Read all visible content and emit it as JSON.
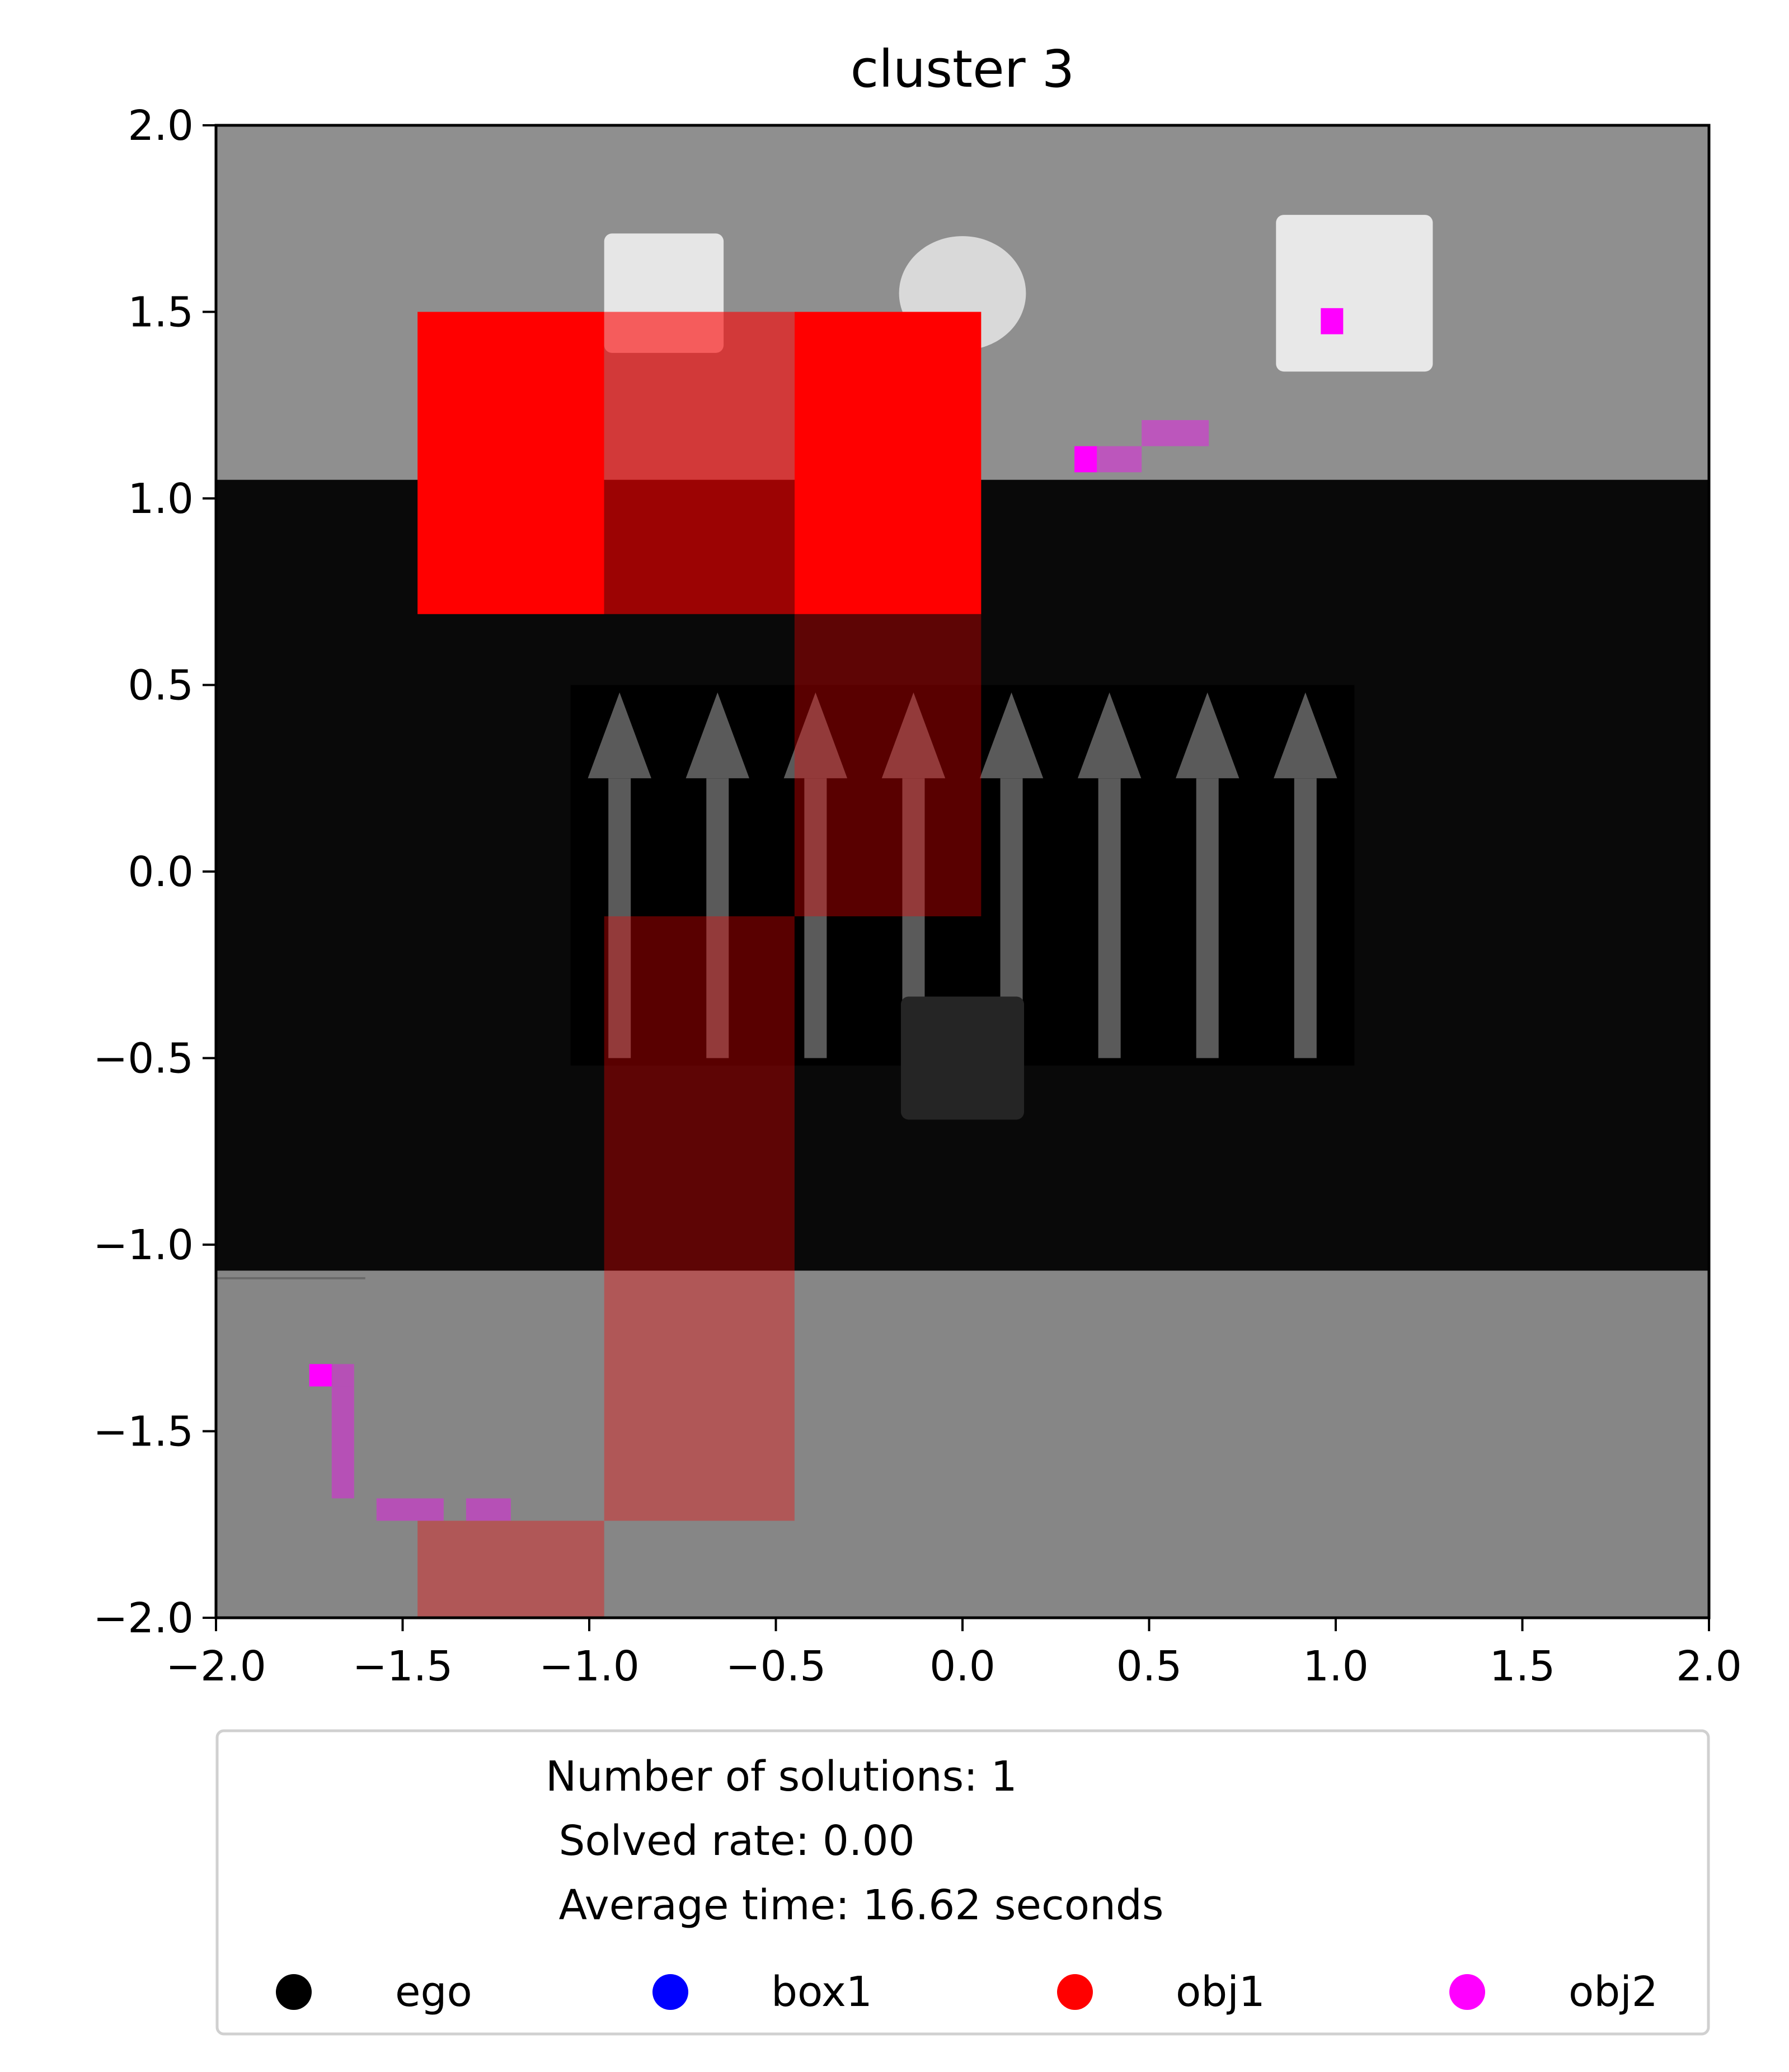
{
  "chart_data": {
    "type": "heatmap",
    "title": "cluster 3",
    "xlabel": "",
    "ylabel": "",
    "xlim": [
      -2.0,
      2.0
    ],
    "ylim": [
      -2.0,
      2.0
    ],
    "x_ticks": [
      "−2.0",
      "−1.5",
      "−1.0",
      "−0.5",
      "0.0",
      "0.5",
      "1.0",
      "1.5",
      "2.0"
    ],
    "y_ticks": [
      "2.0",
      "1.5",
      "1.0",
      "0.5",
      "0.0",
      "−0.5",
      "−1.0",
      "−1.5",
      "−2.0"
    ],
    "grid": false,
    "background": {
      "top_region": {
        "y_range": [
          1.05,
          2.0
        ],
        "color": "#8f8f8f"
      },
      "table_region": {
        "y_range": [
          -1.07,
          1.05
        ],
        "color": "#090909"
      },
      "bottom_region": {
        "y_range": [
          -2.0,
          -1.07
        ],
        "color": "#868686"
      },
      "arrow_panel": {
        "x_range": [
          -1.05,
          1.05
        ],
        "y_range": [
          -0.52,
          0.5
        ],
        "arrow_count": 8,
        "arrow_color": "#5a5a5a"
      },
      "objects": [
        {
          "name": "white cube left",
          "x": -0.8,
          "y": 1.55,
          "size": 0.32,
          "color": "#e6e6e6"
        },
        {
          "name": "white cube right",
          "x": 1.05,
          "y": 1.55,
          "size": 0.42,
          "color": "#e8e8e8"
        },
        {
          "name": "white sphere",
          "x": 0.0,
          "y": 1.55,
          "radius": 0.17,
          "color": "#d9d9d9"
        },
        {
          "name": "dark cube",
          "x": 0.0,
          "y": -0.5,
          "size": 0.33,
          "color": "#252525"
        }
      ]
    },
    "series": [
      {
        "name": "obj1",
        "color": "#ff0000",
        "cells": [
          {
            "x0": -1.46,
            "x1": -0.96,
            "y0": 0.69,
            "y1": 1.5,
            "alpha": 1.0
          },
          {
            "x0": -0.96,
            "x1": -0.45,
            "y0": 0.69,
            "y1": 1.5,
            "alpha": 0.6
          },
          {
            "x0": -0.45,
            "x1": 0.05,
            "y0": 0.69,
            "y1": 1.5,
            "alpha": 1.0
          },
          {
            "x0": -0.45,
            "x1": 0.05,
            "y0": -0.12,
            "y1": 0.69,
            "alpha": 0.35
          },
          {
            "x0": -0.96,
            "x1": -0.45,
            "y0": -1.74,
            "y1": -0.12,
            "alpha": 0.35
          },
          {
            "x0": -1.46,
            "x1": -0.96,
            "y0": -2.0,
            "y1": -1.74,
            "alpha": 0.35
          }
        ]
      },
      {
        "name": "obj2",
        "color": "#ff00ff",
        "cells": [
          {
            "x0": 0.96,
            "x1": 1.02,
            "y0": 1.44,
            "y1": 1.51,
            "alpha": 1.0
          },
          {
            "x0": 0.3,
            "x1": 0.36,
            "y0": 1.07,
            "y1": 1.14,
            "alpha": 1.0
          },
          {
            "x0": 0.36,
            "x1": 0.48,
            "y0": 1.07,
            "y1": 1.14,
            "alpha": 0.4
          },
          {
            "x0": 0.48,
            "x1": 0.66,
            "y0": 1.14,
            "y1": 1.21,
            "alpha": 0.4
          },
          {
            "x0": -1.75,
            "x1": -1.69,
            "y0": -1.38,
            "y1": -1.32,
            "alpha": 1.0
          },
          {
            "x0": -1.69,
            "x1": -1.63,
            "y0": -1.38,
            "y1": -1.32,
            "alpha": 0.4
          },
          {
            "x0": -1.69,
            "x1": -1.63,
            "y0": -1.68,
            "y1": -1.38,
            "alpha": 0.4
          },
          {
            "x0": -1.57,
            "x1": -1.39,
            "y0": -1.74,
            "y1": -1.68,
            "alpha": 0.4
          },
          {
            "x0": -1.33,
            "x1": -1.21,
            "y0": -1.74,
            "y1": -1.68,
            "alpha": 0.4
          }
        ]
      }
    ],
    "legend": {
      "placement": "bottom",
      "lines": [
        "Number of solutions: 1",
        " Solved rate: 0.00",
        " Average time: 16.62 seconds"
      ],
      "entries": [
        {
          "name": "ego",
          "color": "#000000"
        },
        {
          "name": "box1",
          "color": "#0000ff"
        },
        {
          "name": "obj1",
          "color": "#ff0000"
        },
        {
          "name": "obj2",
          "color": "#ff00ff"
        }
      ]
    }
  }
}
